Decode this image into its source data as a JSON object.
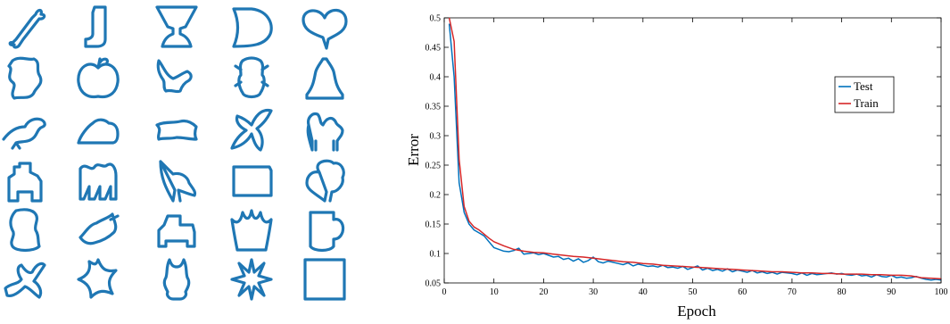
{
  "shape_grid": {
    "color": "#1f77b4",
    "shapes": [
      "bone",
      "boot",
      "chalice",
      "semicircle",
      "heart",
      "blob",
      "apple",
      "bird-flying",
      "beetle",
      "bell",
      "bird",
      "shoe",
      "fish",
      "butterfly",
      "camel",
      "house",
      "cattle",
      "chicken",
      "rectangle",
      "turkey",
      "vase",
      "fish-tail",
      "car",
      "crown",
      "cup",
      "lizard",
      "starfish",
      "devil",
      "star-burst",
      "square"
    ]
  },
  "chart_data": {
    "type": "line",
    "title": "",
    "xlabel": "Epoch",
    "ylabel": "Error",
    "xlim": [
      0,
      100
    ],
    "ylim": [
      0.05,
      0.5
    ],
    "xticks": [
      0,
      10,
      20,
      30,
      40,
      50,
      60,
      70,
      80,
      90,
      100
    ],
    "yticks": [
      0.05,
      0.1,
      0.15,
      0.2,
      0.25,
      0.3,
      0.35,
      0.4,
      0.45,
      0.5
    ],
    "legend": {
      "position": "top-right"
    },
    "grid": false,
    "series": [
      {
        "name": "Test",
        "color": "#0072BD",
        "x": [
          1,
          2,
          3,
          4,
          5,
          6,
          7,
          8,
          9,
          10,
          11,
          12,
          13,
          14,
          15,
          16,
          17,
          18,
          19,
          20,
          21,
          22,
          23,
          24,
          25,
          26,
          27,
          28,
          29,
          30,
          31,
          32,
          33,
          34,
          35,
          36,
          37,
          38,
          39,
          40,
          41,
          42,
          43,
          44,
          45,
          46,
          47,
          48,
          49,
          50,
          51,
          52,
          53,
          54,
          55,
          56,
          57,
          58,
          59,
          60,
          61,
          62,
          63,
          64,
          65,
          66,
          67,
          68,
          69,
          70,
          71,
          72,
          73,
          74,
          75,
          76,
          77,
          78,
          79,
          80,
          81,
          82,
          83,
          84,
          85,
          86,
          87,
          88,
          89,
          90,
          91,
          92,
          93,
          94,
          95,
          96,
          97,
          98,
          99,
          100
        ],
        "values": [
          0.49,
          0.4,
          0.22,
          0.17,
          0.15,
          0.14,
          0.135,
          0.13,
          0.12,
          0.11,
          0.107,
          0.104,
          0.103,
          0.105,
          0.109,
          0.099,
          0.1,
          0.101,
          0.098,
          0.1,
          0.097,
          0.094,
          0.095,
          0.09,
          0.092,
          0.087,
          0.091,
          0.085,
          0.088,
          0.094,
          0.086,
          0.084,
          0.087,
          0.085,
          0.083,
          0.081,
          0.084,
          0.079,
          0.082,
          0.08,
          0.078,
          0.079,
          0.077,
          0.08,
          0.076,
          0.077,
          0.075,
          0.078,
          0.073,
          0.076,
          0.079,
          0.072,
          0.075,
          0.071,
          0.073,
          0.07,
          0.074,
          0.069,
          0.072,
          0.07,
          0.068,
          0.071,
          0.067,
          0.069,
          0.066,
          0.068,
          0.065,
          0.068,
          0.067,
          0.066,
          0.064,
          0.067,
          0.063,
          0.066,
          0.064,
          0.065,
          0.066,
          0.067,
          0.065,
          0.066,
          0.064,
          0.063,
          0.065,
          0.062,
          0.063,
          0.06,
          0.064,
          0.061,
          0.06,
          0.063,
          0.059,
          0.06,
          0.058,
          0.059,
          0.061,
          0.058,
          0.056,
          0.055,
          0.056,
          0.055
        ]
      },
      {
        "name": "Train",
        "color": "#D62728",
        "x": [
          1,
          2,
          3,
          4,
          5,
          6,
          7,
          8,
          9,
          10,
          12,
          14,
          16,
          18,
          20,
          22,
          24,
          26,
          28,
          30,
          32,
          34,
          36,
          38,
          40,
          42,
          44,
          46,
          48,
          50,
          52,
          54,
          56,
          58,
          60,
          62,
          64,
          66,
          68,
          70,
          72,
          74,
          76,
          78,
          80,
          82,
          84,
          86,
          88,
          90,
          92,
          94,
          96,
          98,
          100
        ],
        "values": [
          0.5,
          0.46,
          0.26,
          0.18,
          0.155,
          0.145,
          0.14,
          0.133,
          0.126,
          0.12,
          0.113,
          0.107,
          0.104,
          0.102,
          0.101,
          0.099,
          0.097,
          0.095,
          0.094,
          0.092,
          0.09,
          0.088,
          0.086,
          0.085,
          0.083,
          0.082,
          0.08,
          0.079,
          0.078,
          0.077,
          0.076,
          0.075,
          0.074,
          0.073,
          0.072,
          0.071,
          0.07,
          0.069,
          0.069,
          0.068,
          0.067,
          0.067,
          0.066,
          0.066,
          0.065,
          0.065,
          0.065,
          0.064,
          0.064,
          0.063,
          0.063,
          0.062,
          0.059,
          0.058,
          0.057
        ]
      }
    ]
  }
}
